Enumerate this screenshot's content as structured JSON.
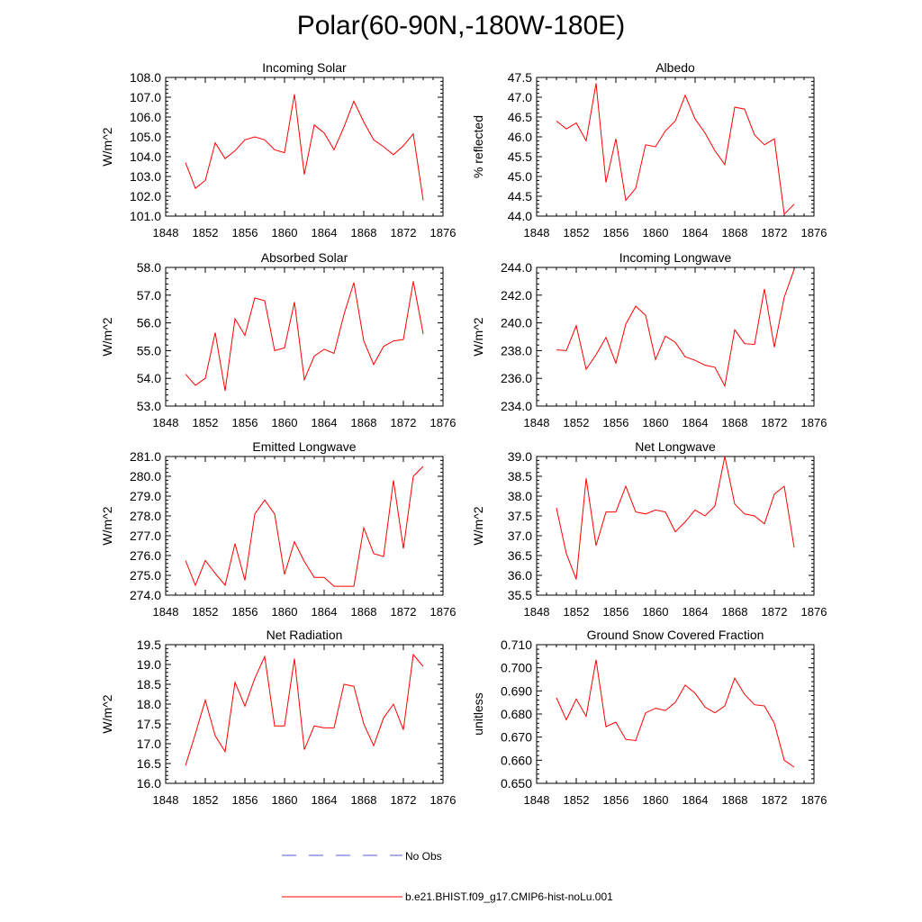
{
  "title": "Polar(60-90N,-180W-180E)",
  "colors": {
    "model": "#ff0000",
    "obs": "#5a5ad6",
    "axis": "#000000"
  },
  "legend": {
    "obs_label": "No Obs",
    "model_label": "b.e21.BHIST.f09_g17.CMIP6-hist-noLu.001"
  },
  "chart_data": [
    {
      "type": "line",
      "title": "Incoming Solar",
      "ylabel": "W/m^2",
      "xlim": [
        1848,
        1876
      ],
      "ylim": [
        101.0,
        108.0
      ],
      "xticks": [
        "1848",
        "1852",
        "1856",
        "1860",
        "1864",
        "1868",
        "1872",
        "1876"
      ],
      "yticks": [
        "101.0",
        "102.0",
        "103.0",
        "104.0",
        "105.0",
        "106.0",
        "107.0",
        "108.0"
      ],
      "series": [
        {
          "x": [
            1850,
            1851,
            1852,
            1853,
            1854,
            1855,
            1856,
            1857,
            1858,
            1859,
            1860,
            1861,
            1862,
            1863,
            1864,
            1865,
            1866,
            1867,
            1868,
            1869,
            1870,
            1871,
            1872,
            1873,
            1874
          ],
          "values": [
            103.7,
            102.4,
            102.8,
            104.7,
            103.9,
            104.3,
            104.85,
            105.0,
            104.85,
            104.35,
            104.2,
            107.15,
            103.1,
            105.6,
            105.2,
            104.35,
            105.5,
            106.8,
            105.75,
            104.85,
            104.5,
            104.1,
            104.55,
            105.15,
            101.8
          ]
        }
      ]
    },
    {
      "type": "line",
      "title": "Albedo",
      "ylabel": "% reflected",
      "xlim": [
        1848,
        1876
      ],
      "ylim": [
        44.0,
        47.5
      ],
      "xticks": [
        "1848",
        "1852",
        "1856",
        "1860",
        "1864",
        "1868",
        "1872",
        "1876"
      ],
      "yticks": [
        "44.0",
        "44.5",
        "45.0",
        "45.5",
        "46.0",
        "46.5",
        "47.0",
        "47.5"
      ],
      "series": [
        {
          "x": [
            1850,
            1851,
            1852,
            1853,
            1854,
            1855,
            1856,
            1857,
            1858,
            1859,
            1860,
            1861,
            1862,
            1863,
            1864,
            1865,
            1866,
            1867,
            1868,
            1869,
            1870,
            1871,
            1872,
            1873,
            1874
          ],
          "values": [
            46.4,
            46.2,
            46.35,
            45.9,
            47.35,
            44.85,
            45.95,
            44.4,
            44.7,
            45.8,
            45.75,
            46.15,
            46.4,
            47.05,
            46.45,
            46.1,
            45.65,
            45.3,
            46.75,
            46.7,
            46.05,
            45.8,
            45.95,
            44.05,
            44.3
          ]
        }
      ]
    },
    {
      "type": "line",
      "title": "Absorbed Solar",
      "ylabel": "W/m^2",
      "xlim": [
        1848,
        1876
      ],
      "ylim": [
        53.0,
        58.0
      ],
      "xticks": [
        "1848",
        "1852",
        "1856",
        "1860",
        "1864",
        "1868",
        "1872",
        "1876"
      ],
      "yticks": [
        "53.0",
        "54.0",
        "55.0",
        "56.0",
        "57.0",
        "58.0"
      ],
      "series": [
        {
          "x": [
            1850,
            1851,
            1852,
            1853,
            1854,
            1855,
            1856,
            1857,
            1858,
            1859,
            1860,
            1861,
            1862,
            1863,
            1864,
            1865,
            1866,
            1867,
            1868,
            1869,
            1870,
            1871,
            1872,
            1873,
            1874
          ],
          "values": [
            54.15,
            53.75,
            54.0,
            55.65,
            53.55,
            56.15,
            55.55,
            56.9,
            56.8,
            55.0,
            55.1,
            56.75,
            53.95,
            54.8,
            55.05,
            54.9,
            56.3,
            57.45,
            55.35,
            54.5,
            55.15,
            55.35,
            55.4,
            57.5,
            55.6
          ]
        }
      ]
    },
    {
      "type": "line",
      "title": "Incoming Longwave",
      "ylabel": "W/m^2",
      "xlim": [
        1848,
        1876
      ],
      "ylim": [
        234.0,
        244.0
      ],
      "xticks": [
        "1848",
        "1852",
        "1856",
        "1860",
        "1864",
        "1868",
        "1872",
        "1876"
      ],
      "yticks": [
        "234.0",
        "236.0",
        "238.0",
        "240.0",
        "242.0",
        "244.0"
      ],
      "series": [
        {
          "x": [
            1850,
            1851,
            1852,
            1853,
            1854,
            1855,
            1856,
            1857,
            1858,
            1859,
            1860,
            1861,
            1862,
            1863,
            1864,
            1865,
            1866,
            1867,
            1868,
            1869,
            1870,
            1871,
            1872,
            1873,
            1874
          ],
          "values": [
            238.05,
            238.0,
            239.8,
            236.65,
            237.7,
            238.95,
            237.1,
            239.9,
            241.2,
            240.55,
            237.35,
            239.05,
            238.6,
            237.55,
            237.3,
            236.95,
            236.8,
            235.45,
            239.5,
            238.5,
            238.45,
            242.45,
            238.25,
            241.85,
            243.85
          ]
        }
      ]
    },
    {
      "type": "line",
      "title": "Emitted Longwave",
      "ylabel": "W/m^2",
      "xlim": [
        1848,
        1876
      ],
      "ylim": [
        274.0,
        281.0
      ],
      "xticks": [
        "1848",
        "1852",
        "1856",
        "1860",
        "1864",
        "1868",
        "1872",
        "1876"
      ],
      "yticks": [
        "274.0",
        "275.0",
        "276.0",
        "277.0",
        "278.0",
        "279.0",
        "280.0",
        "281.0"
      ],
      "series": [
        {
          "x": [
            1850,
            1851,
            1852,
            1853,
            1854,
            1855,
            1856,
            1857,
            1858,
            1859,
            1860,
            1861,
            1862,
            1863,
            1864,
            1865,
            1866,
            1867,
            1868,
            1869,
            1870,
            1871,
            1872,
            1873,
            1874
          ],
          "values": [
            275.75,
            274.5,
            275.75,
            275.1,
            274.5,
            276.6,
            274.75,
            278.1,
            278.8,
            278.1,
            275.05,
            276.7,
            275.7,
            274.9,
            274.9,
            274.45,
            274.45,
            274.45,
            277.4,
            276.1,
            275.95,
            279.8,
            276.35,
            280.0,
            280.5
          ]
        }
      ]
    },
    {
      "type": "line",
      "title": "Net Longwave",
      "ylabel": "W/m^2",
      "xlim": [
        1848,
        1876
      ],
      "ylim": [
        35.5,
        39.0
      ],
      "xticks": [
        "1848",
        "1852",
        "1856",
        "1860",
        "1864",
        "1868",
        "1872",
        "1876"
      ],
      "yticks": [
        "35.5",
        "36.0",
        "36.5",
        "37.0",
        "37.5",
        "38.0",
        "38.5",
        "39.0"
      ],
      "series": [
        {
          "x": [
            1850,
            1851,
            1852,
            1853,
            1854,
            1855,
            1856,
            1857,
            1858,
            1859,
            1860,
            1861,
            1862,
            1863,
            1864,
            1865,
            1866,
            1867,
            1868,
            1869,
            1870,
            1871,
            1872,
            1873,
            1874
          ],
          "values": [
            37.7,
            36.55,
            35.9,
            38.45,
            36.75,
            37.6,
            37.6,
            38.25,
            37.6,
            37.55,
            37.65,
            37.6,
            37.1,
            37.35,
            37.65,
            37.5,
            37.75,
            39.0,
            37.8,
            37.55,
            37.5,
            37.3,
            38.05,
            38.25,
            36.7
          ]
        }
      ]
    },
    {
      "type": "line",
      "title": "Net Radiation",
      "ylabel": "W/m^2",
      "xlim": [
        1848,
        1876
      ],
      "ylim": [
        16.0,
        19.5
      ],
      "xticks": [
        "1848",
        "1852",
        "1856",
        "1860",
        "1864",
        "1868",
        "1872",
        "1876"
      ],
      "yticks": [
        "16.0",
        "16.5",
        "17.0",
        "17.5",
        "18.0",
        "18.5",
        "19.0",
        "19.5"
      ],
      "series": [
        {
          "x": [
            1850,
            1851,
            1852,
            1853,
            1854,
            1855,
            1856,
            1857,
            1858,
            1859,
            1860,
            1861,
            1862,
            1863,
            1864,
            1865,
            1866,
            1867,
            1868,
            1869,
            1870,
            1871,
            1872,
            1873,
            1874
          ],
          "values": [
            16.45,
            17.25,
            18.1,
            17.2,
            16.8,
            18.55,
            17.95,
            18.65,
            19.2,
            17.45,
            17.45,
            19.15,
            16.85,
            17.45,
            17.4,
            17.4,
            18.5,
            18.45,
            17.5,
            16.95,
            17.65,
            18.0,
            17.35,
            19.25,
            18.95
          ]
        }
      ]
    },
    {
      "type": "line",
      "title": "Ground Snow Covered Fraction",
      "ylabel": "unitless",
      "xlim": [
        1848,
        1876
      ],
      "ylim": [
        0.65,
        0.71
      ],
      "xticks": [
        "1848",
        "1852",
        "1856",
        "1860",
        "1864",
        "1868",
        "1872",
        "1876"
      ],
      "yticks": [
        "0.650",
        "0.660",
        "0.670",
        "0.680",
        "0.690",
        "0.700",
        "0.710"
      ],
      "series": [
        {
          "x": [
            1850,
            1851,
            1852,
            1853,
            1854,
            1855,
            1856,
            1857,
            1858,
            1859,
            1860,
            1861,
            1862,
            1863,
            1864,
            1865,
            1866,
            1867,
            1868,
            1869,
            1870,
            1871,
            1872,
            1873,
            1874
          ],
          "values": [
            0.687,
            0.6775,
            0.6865,
            0.679,
            0.7035,
            0.6745,
            0.6765,
            0.669,
            0.6685,
            0.6805,
            0.6825,
            0.6815,
            0.685,
            0.6925,
            0.689,
            0.683,
            0.6805,
            0.6835,
            0.6955,
            0.6885,
            0.684,
            0.6835,
            0.676,
            0.66,
            0.657
          ]
        }
      ]
    }
  ]
}
